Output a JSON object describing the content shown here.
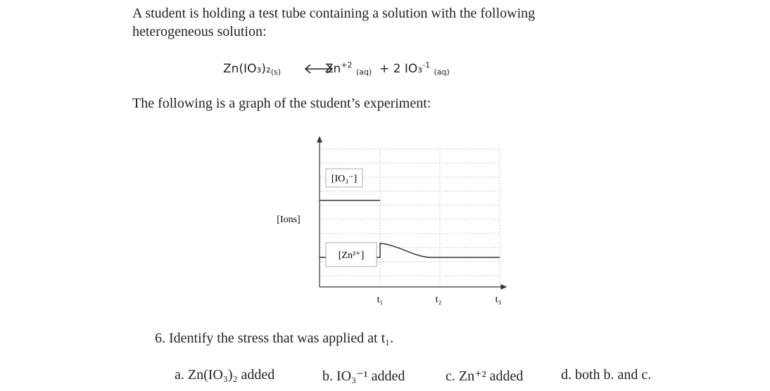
{
  "intro": [
    "A student is holding a test tube containing a solution with the following",
    "heterogeneous solution:"
  ],
  "equation": {
    "reactant": "Zn(IO₃)₂",
    "reactant_state": "(s)",
    "product1": "Zn",
    "product1_charge": "+2",
    "product1_state": "(aq)",
    "plus": "+ 2",
    "product2": "IO₃",
    "product2_charge": "-1",
    "product2_state": "(aq)"
  },
  "graph_intro": "The following is a graph of the student’s experiment:",
  "graph": {
    "y_label": "[Ions]",
    "iodate_label": "[IO₃⁻]",
    "zinc_label": "[Zn²⁺]",
    "times": [
      "t₁",
      "t₂",
      "t₃"
    ]
  },
  "question": "6.  Identify the stress that was applied at t₁.",
  "options": [
    "a. Zn(IO₃)₂ added",
    "b. IO₃⁻¹ added",
    "c. Zn⁺² added",
    "d. both b. and c."
  ]
}
